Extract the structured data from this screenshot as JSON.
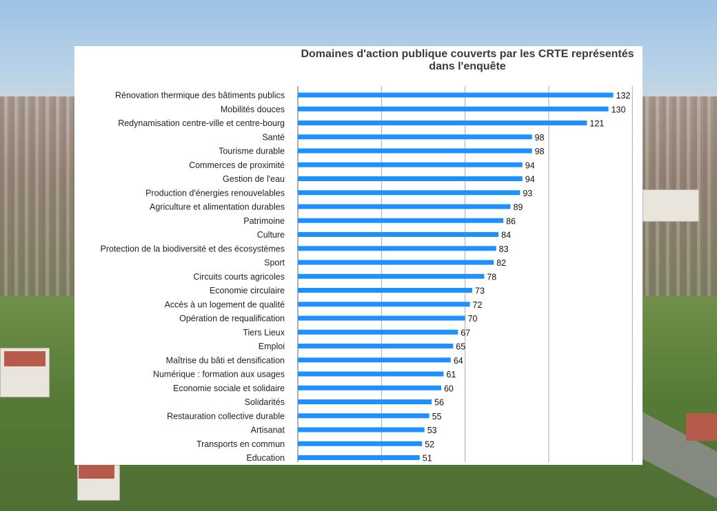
{
  "chart_data": {
    "type": "bar",
    "orientation": "horizontal",
    "title": "Domaines d'action publique couverts par les CRTE représentés dans l'enquête",
    "title_lines": [
      "Domaines d'action publique couverts par les CRTE représentés",
      "dans l'enquête"
    ],
    "categories": [
      "Rénovation thermique des bâtiments publics",
      "Mobilités douces",
      "Redynamisation centre-ville et centre-bourg",
      "Santé",
      "Tourisme durable",
      "Commerces de proximité",
      "Gestion de l'eau",
      "Production d'énergies renouvelables",
      "Agriculture et alimentation durables",
      "Patrimoine",
      "Culture",
      "Protection de la biodiversité et des écosystèmes",
      "Sport",
      "Circuits courts agricoles",
      "Economie circulaire",
      "Accès à un logement de qualité",
      "Opération de requalification",
      "Tiers Lieux",
      "Emploi",
      "Maîtrise du bâti et densification",
      "Numérique : formation aux usages",
      "Economie sociale et solidaire",
      "Solidarités",
      "Restauration collective durable",
      "Artisanat",
      "Transports en commun",
      "Education"
    ],
    "values": [
      132,
      130,
      121,
      98,
      98,
      94,
      94,
      93,
      89,
      86,
      84,
      83,
      82,
      78,
      73,
      72,
      70,
      67,
      65,
      64,
      61,
      60,
      56,
      55,
      53,
      52,
      51
    ],
    "xlim": [
      0,
      140
    ],
    "grid": true,
    "data_labels": true,
    "bar_color": "#1e90ff"
  }
}
